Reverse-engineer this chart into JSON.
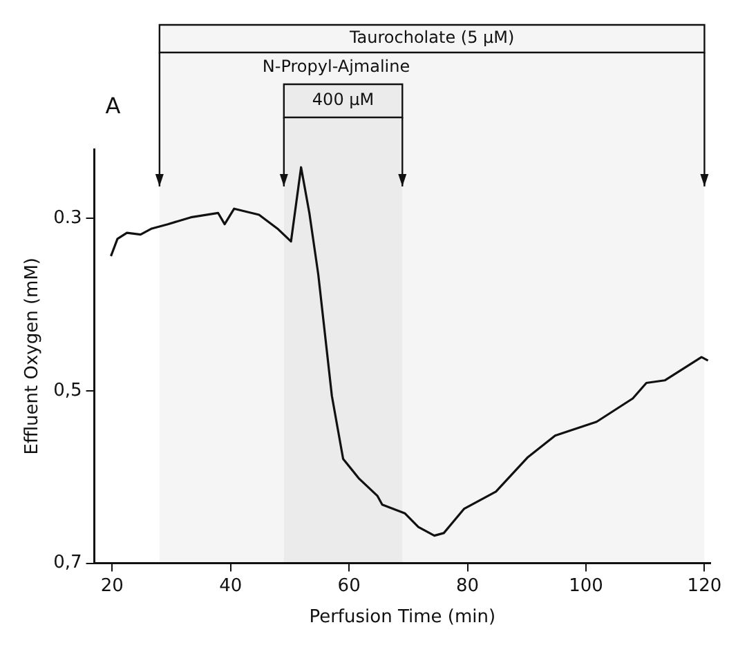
{
  "chart_data": {
    "type": "line",
    "xlabel": "Perfusion Time (min)",
    "ylabel": "Effluent Oxygen (mM)",
    "annotations": [
      "A",
      "N-Propyl-Ajmaline"
    ],
    "bands": [
      {
        "axis": "x",
        "from": 28,
        "to": 120,
        "label": "Taurocholate (5 µM)"
      },
      {
        "axis": "x",
        "from": 49,
        "to": 69,
        "label": "400 µM"
      }
    ],
    "series": [
      {
        "color": "#111111",
        "x": [
          19.8,
          20.9,
          22.5,
          24.8,
          26.7,
          29.4,
          33.3,
          37.9,
          39.0,
          40.6,
          44.8,
          47.9,
          50.2,
          51.9,
          53.3,
          54.8,
          57.1,
          59.0,
          61.7,
          64.8,
          65.6,
          69.4,
          71.7,
          74.4,
          76.0,
          79.4,
          84.8,
          90.2,
          94.8,
          101.8,
          107.9,
          110.2,
          113.3,
          115.6,
          119.5,
          120.6
        ],
        "values": [
          0.344,
          0.324,
          0.317,
          0.319,
          0.312,
          0.307,
          0.299,
          0.294,
          0.307,
          0.289,
          0.296,
          0.312,
          0.327,
          0.241,
          0.294,
          0.365,
          0.506,
          0.579,
          0.602,
          0.622,
          0.632,
          0.642,
          0.658,
          0.668,
          0.665,
          0.637,
          0.617,
          0.577,
          0.552,
          0.536,
          0.509,
          0.491,
          0.488,
          0.478,
          0.461,
          0.465
        ]
      }
    ],
    "xlim": [
      17,
      121
    ],
    "xticks": [
      20,
      40,
      60,
      80,
      100,
      120
    ],
    "ylim": [
      0.7,
      0.22
    ],
    "yticks": [
      {
        "value": 0.3,
        "label": "0.3"
      },
      {
        "value": 0.5,
        "label": "0,5"
      },
      {
        "value": 0.7,
        "label": "0,7"
      }
    ],
    "grid": false,
    "legend": false,
    "marker": "none",
    "line_style": "solid"
  }
}
